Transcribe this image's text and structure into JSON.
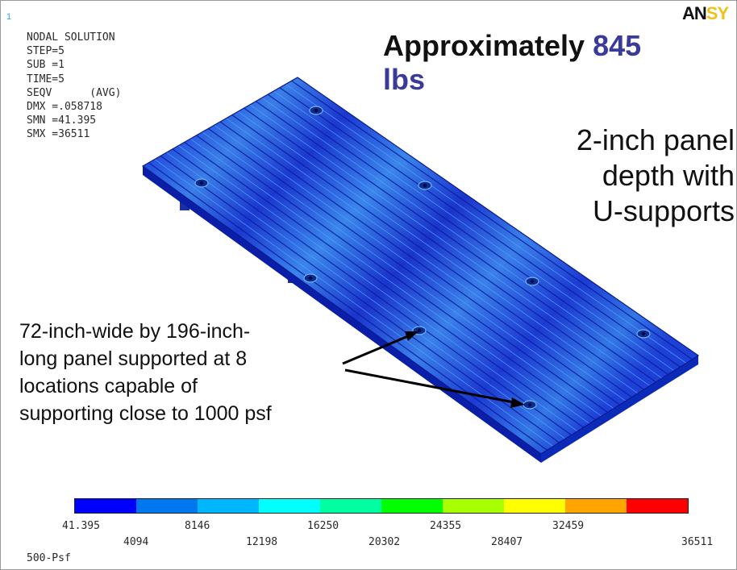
{
  "window_number": "1",
  "solution_info": [
    "NODAL SOLUTION",
    "",
    "STEP=5",
    "SUB =1",
    "TIME=5",
    "SEQV      (AVG)",
    "DMX =.058718",
    "SMN =41.395",
    "SMX =36511"
  ],
  "logo": {
    "text_main": "AN",
    "text_highlight": "SY"
  },
  "headline": {
    "prefix": "Approximately ",
    "number": "845",
    "unit": "lbs"
  },
  "description_right": [
    "2-inch panel",
    "depth with",
    "U-supports"
  ],
  "callout": [
    "72-inch-wide by 196-inch-",
    "long panel supported at 8",
    "locations capable of",
    "supporting close to 1000 psf"
  ],
  "scale": {
    "colors": [
      "#0000ff",
      "#0077ee",
      "#00b7ff",
      "#00ffff",
      "#00ffa0",
      "#00ff00",
      "#a8ff00",
      "#ffff00",
      "#ffa500",
      "#ff0000"
    ],
    "labels_top": [
      "41.395",
      "8146",
      "16250",
      "24355",
      "32459"
    ],
    "labels_bottom": [
      "4094",
      "12198",
      "20302",
      "28407",
      "36511"
    ]
  },
  "load_case": "500-Psf",
  "colors": {
    "panel": "#1e3fd8",
    "panel_dark": "#0a1ea8",
    "panel_light": "#3a8cf0",
    "arrow": "#000000",
    "headline_accent": "#3a3a9a"
  },
  "model": {
    "support_count": 8
  }
}
